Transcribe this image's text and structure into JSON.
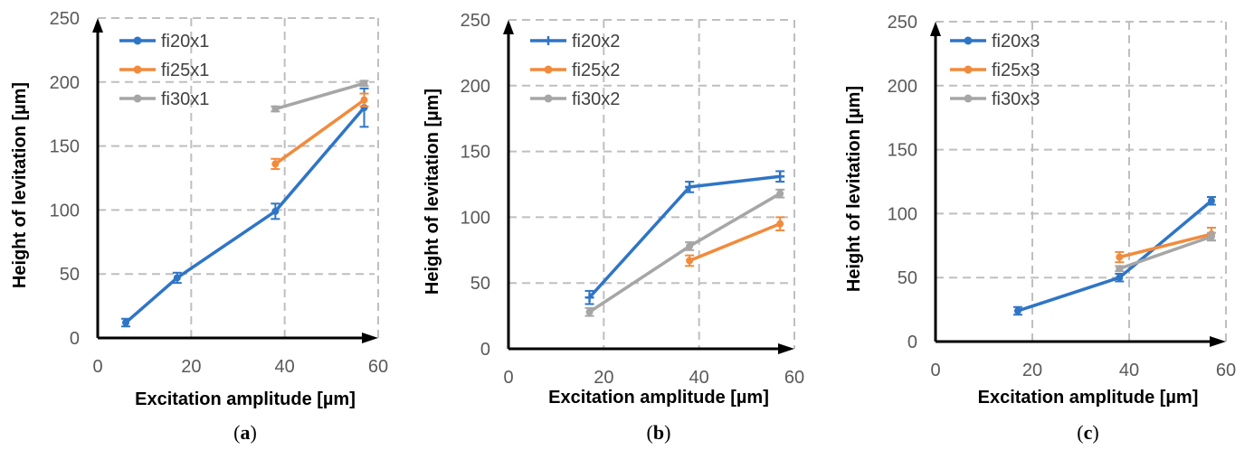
{
  "chart_data": [
    {
      "type": "line",
      "panel_label": "a",
      "xlabel": "Excitation amplitude [µm]",
      "ylabel": "Height of levitation [µm]",
      "xlim": [
        0,
        60
      ],
      "ylim": [
        0,
        250
      ],
      "xticks": [
        0,
        20,
        40,
        60
      ],
      "yticks": [
        0,
        50,
        100,
        150,
        200,
        250
      ],
      "grid": true,
      "legend_position": "top-left",
      "series": [
        {
          "name": "fi20x1",
          "color": "#2E75C6",
          "marker": "circle",
          "x": [
            6,
            17,
            38,
            57
          ],
          "y": [
            12,
            47,
            99,
            180
          ],
          "err": [
            3,
            4,
            6,
            15
          ]
        },
        {
          "name": "fi25x1",
          "color": "#F28A3C",
          "marker": "circle",
          "x": [
            38,
            57
          ],
          "y": [
            136,
            186
          ],
          "err": [
            4,
            5
          ]
        },
        {
          "name": "fi30x1",
          "color": "#A6A6A6",
          "marker": "circle",
          "x": [
            38,
            57
          ],
          "y": [
            179,
            199
          ],
          "err": [
            2,
            2
          ]
        }
      ]
    },
    {
      "type": "line",
      "panel_label": "b",
      "xlabel": "Excitation amplitude [µm]",
      "ylabel": "Height of levitation [µm]",
      "xlim": [
        0,
        60
      ],
      "ylim": [
        0,
        250
      ],
      "xticks": [
        0,
        20,
        40,
        60
      ],
      "yticks": [
        0,
        50,
        100,
        150,
        200,
        250
      ],
      "grid": true,
      "legend_position": "top-left",
      "series": [
        {
          "name": "fi20x2",
          "color": "#2E75C6",
          "marker": "plus",
          "x": [
            17,
            38,
            57
          ],
          "y": [
            39,
            123,
            131
          ],
          "err": [
            5,
            4,
            4
          ]
        },
        {
          "name": "fi25x2",
          "color": "#F28A3C",
          "marker": "circle",
          "x": [
            38,
            57
          ],
          "y": [
            67,
            95
          ],
          "err": [
            4,
            5
          ]
        },
        {
          "name": "fi30x2",
          "color": "#A6A6A6",
          "marker": "circle",
          "x": [
            17,
            38,
            57
          ],
          "y": [
            28,
            78,
            118
          ],
          "err": [
            3,
            3,
            3
          ]
        }
      ]
    },
    {
      "type": "line",
      "panel_label": "c",
      "xlabel": "Excitation amplitude [µm]",
      "ylabel": "Height of levitation [µm]",
      "xlim": [
        0,
        60
      ],
      "ylim": [
        0,
        250
      ],
      "xticks": [
        0,
        20,
        40,
        60
      ],
      "yticks": [
        0,
        50,
        100,
        150,
        200,
        250
      ],
      "grid": true,
      "legend_position": "top-left",
      "series": [
        {
          "name": "fi20x3",
          "color": "#2E75C6",
          "marker": "circle",
          "x": [
            17,
            38,
            57
          ],
          "y": [
            24,
            50,
            110
          ],
          "err": [
            3,
            3,
            3
          ]
        },
        {
          "name": "fi25x3",
          "color": "#F28A3C",
          "marker": "circle",
          "x": [
            38,
            57
          ],
          "y": [
            66,
            84
          ],
          "err": [
            4,
            5
          ]
        },
        {
          "name": "fi30x3",
          "color": "#A6A6A6",
          "marker": "circle",
          "x": [
            38,
            57
          ],
          "y": [
            57,
            82
          ],
          "err": [
            2,
            3
          ]
        }
      ]
    }
  ]
}
